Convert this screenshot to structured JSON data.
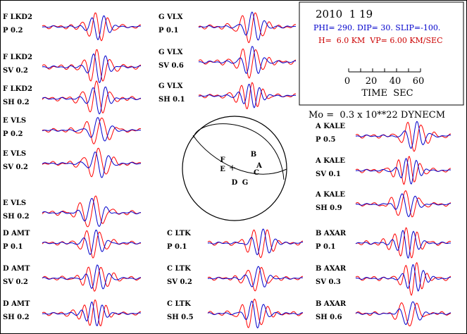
{
  "event": {
    "date": "2010  1 19",
    "mechanism": "PHI= 290. DIP= 30. SLIP=-100.",
    "depth": "H=  6.0 KM  VP= 6.00 KM/SEC",
    "moment": "Mo =  0.3 x 10**22 DYNECM"
  },
  "time_scale": {
    "ticks": [
      "0",
      "20",
      "40",
      "60"
    ],
    "label": "TIME  SEC"
  },
  "colors": {
    "observed": "#0000cc",
    "synthetic": "#ff0000",
    "mechanism_text": "#0000cc",
    "depth_text": "#cc0000",
    "frame": "#000000"
  },
  "stations": [
    {
      "azimuth_label": "F",
      "name": "LKD2",
      "traces": [
        {
          "component": "P",
          "amplitude": "0.2"
        },
        {
          "component": "SV",
          "amplitude": "0.2"
        },
        {
          "component": "SH",
          "amplitude": "0.2"
        }
      ]
    },
    {
      "azimuth_label": "E",
      "name": "VLS",
      "traces": [
        {
          "component": "P",
          "amplitude": "0.2"
        },
        {
          "component": "SV",
          "amplitude": "0.2"
        },
        {
          "component": "SH",
          "amplitude": "0.2"
        }
      ]
    },
    {
      "azimuth_label": "D",
      "name": "AMT",
      "traces": [
        {
          "component": "P",
          "amplitude": "0.1"
        },
        {
          "component": "SV",
          "amplitude": "0.2"
        },
        {
          "component": "SH",
          "amplitude": "0.2"
        }
      ]
    },
    {
      "azimuth_label": "G",
      "name": "VLX",
      "traces": [
        {
          "component": "P",
          "amplitude": "0.1"
        },
        {
          "component": "SV",
          "amplitude": "0.6"
        },
        {
          "component": "SH",
          "amplitude": "0.1"
        }
      ]
    },
    {
      "azimuth_label": "C",
      "name": "LTK",
      "traces": [
        {
          "component": "P",
          "amplitude": "0.1"
        },
        {
          "component": "SV",
          "amplitude": "0.2"
        },
        {
          "component": "SH",
          "amplitude": "0.5"
        }
      ]
    },
    {
      "azimuth_label": "A",
      "name": "KALE",
      "traces": [
        {
          "component": "P",
          "amplitude": "0.5"
        },
        {
          "component": "SV",
          "amplitude": "0.1"
        },
        {
          "component": "SH",
          "amplitude": "0.9"
        }
      ]
    },
    {
      "azimuth_label": "B",
      "name": "AXAR",
      "traces": [
        {
          "component": "P",
          "amplitude": "0.1"
        },
        {
          "component": "SV",
          "amplitude": "0.3"
        },
        {
          "component": "SH",
          "amplitude": "0.6"
        }
      ]
    }
  ],
  "beachball": {
    "center_mark": "+",
    "labels": [
      "F",
      "E",
      "B",
      "A",
      "C",
      "D",
      "G"
    ]
  }
}
